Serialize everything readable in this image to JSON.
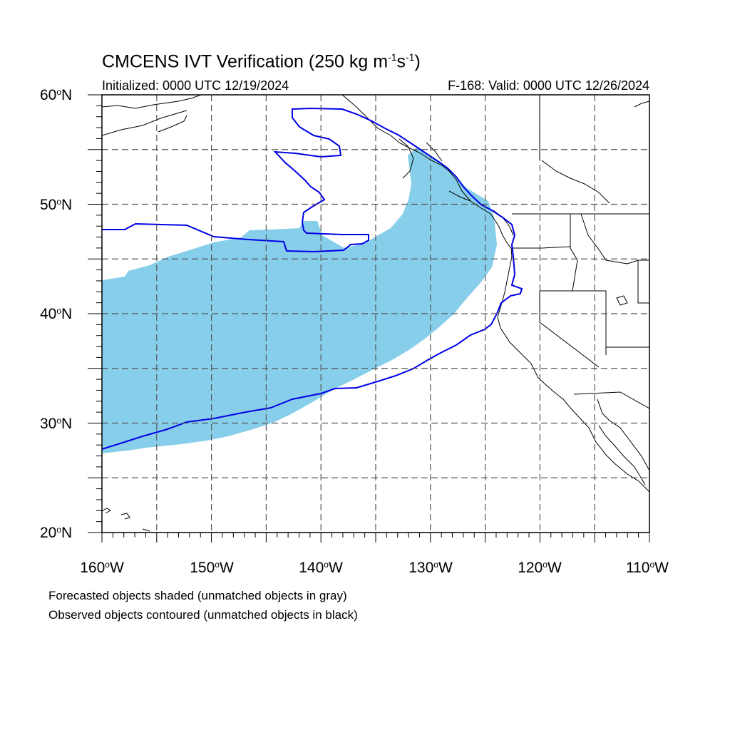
{
  "title": {
    "prefix": "CMCENS IVT Verification (250 kg m",
    "sup1": "-1",
    "mid": "s",
    "sup2": "-1",
    "suffix": ")"
  },
  "subtitle_left": "Initialized: 0000 UTC 12/19/2024",
  "subtitle_right": "F-168: Valid: 0000 UTC 12/26/2024",
  "lat_labels": [
    {
      "num": "60",
      "suffix": "N"
    },
    {
      "num": "50",
      "suffix": "N"
    },
    {
      "num": "40",
      "suffix": "N"
    },
    {
      "num": "30",
      "suffix": "N"
    },
    {
      "num": "20",
      "suffix": "N"
    }
  ],
  "lon_labels": [
    {
      "num": "160",
      "suffix": "W"
    },
    {
      "num": "150",
      "suffix": "W"
    },
    {
      "num": "140",
      "suffix": "W"
    },
    {
      "num": "130",
      "suffix": "W"
    },
    {
      "num": "120",
      "suffix": "W"
    },
    {
      "num": "110",
      "suffix": "W"
    }
  ],
  "notes": {
    "line1": "Forecasted objects shaded (unmatched objects in gray)",
    "line2": "Observed objects contoured (unmatched objects in black)"
  },
  "map_extent": {
    "lon_min": -160,
    "lon_max": -110,
    "lat_min": 20,
    "lat_max": 60
  },
  "colors": {
    "forecast_fill": "#87ceeb",
    "observed_contour": "#0000e6",
    "coastline": "#000000",
    "gridline": "#555555"
  }
}
